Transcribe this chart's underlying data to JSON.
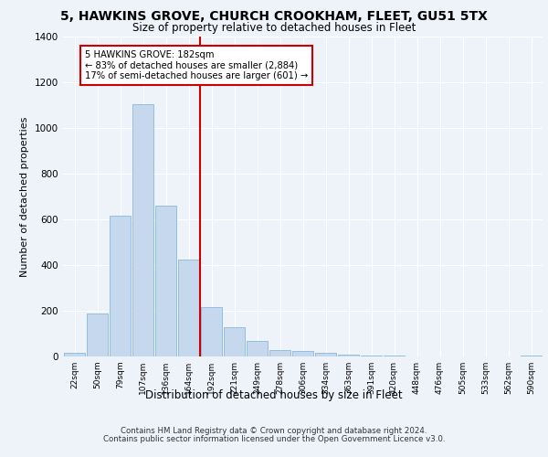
{
  "title1": "5, HAWKINS GROVE, CHURCH CROOKHAM, FLEET, GU51 5TX",
  "title2": "Size of property relative to detached houses in Fleet",
  "xlabel": "Distribution of detached houses by size in Fleet",
  "ylabel": "Number of detached properties",
  "categories": [
    "22sqm",
    "50sqm",
    "79sqm",
    "107sqm",
    "136sqm",
    "164sqm",
    "192sqm",
    "221sqm",
    "249sqm",
    "278sqm",
    "306sqm",
    "334sqm",
    "363sqm",
    "391sqm",
    "420sqm",
    "448sqm",
    "476sqm",
    "505sqm",
    "533sqm",
    "562sqm",
    "590sqm"
  ],
  "values": [
    15,
    190,
    615,
    1105,
    660,
    425,
    215,
    130,
    70,
    30,
    25,
    15,
    10,
    5,
    3,
    0,
    0,
    0,
    0,
    0,
    5
  ],
  "bar_color": "#c5d8ed",
  "bar_edge_color": "#7aafd4",
  "highlight_color": "#cc0000",
  "annotation_text": "5 HAWKINS GROVE: 182sqm\n← 83% of detached houses are smaller (2,884)\n17% of semi-detached houses are larger (601) →",
  "annotation_box_color": "#ffffff",
  "annotation_box_edge": "#cc0000",
  "ylim": [
    0,
    1400
  ],
  "yticks": [
    0,
    200,
    400,
    600,
    800,
    1000,
    1200,
    1400
  ],
  "footer1": "Contains HM Land Registry data © Crown copyright and database right 2024.",
  "footer2": "Contains public sector information licensed under the Open Government Licence v3.0.",
  "bg_color": "#eef2f9",
  "plot_bg_color": "#eef2f9"
}
